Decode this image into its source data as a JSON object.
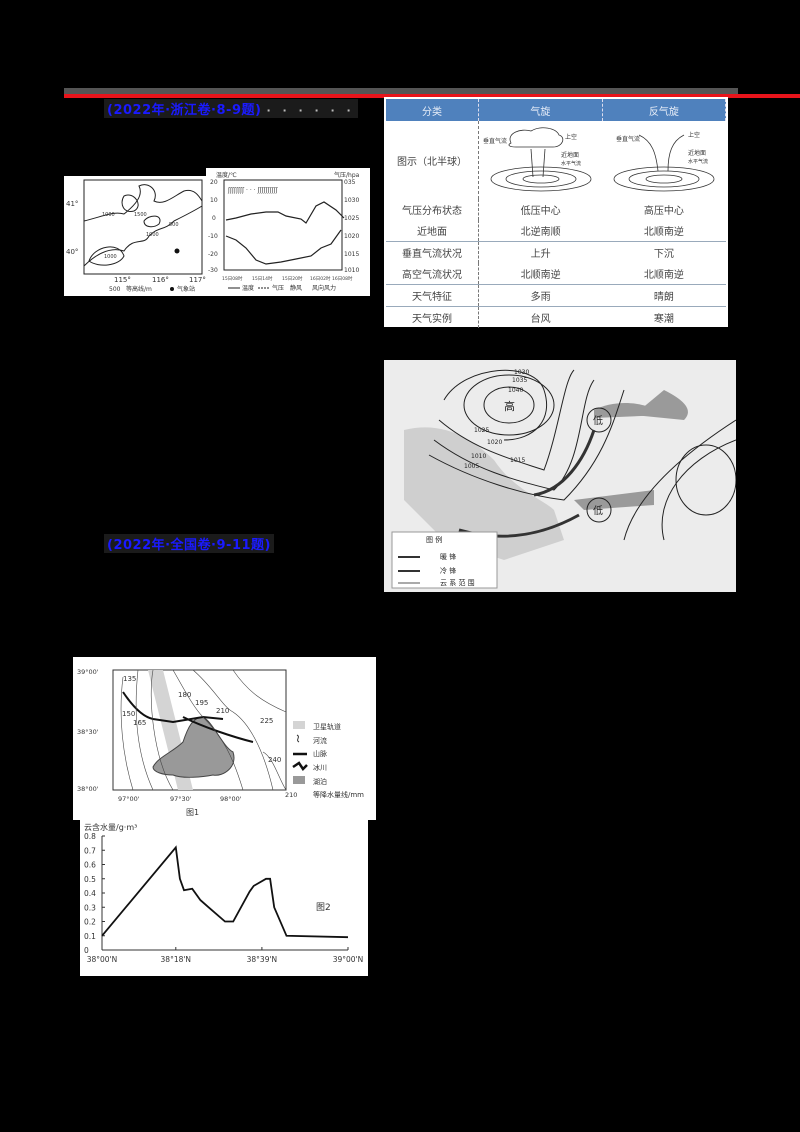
{
  "header": {
    "heading1": "(2022年·浙江卷·8-9题)",
    "heading1_tail": "· · · · · ·",
    "heading2": "(2022年·全国卷·9-11题)"
  },
  "fig_topo": {
    "lat_labels": [
      "41°",
      "40°"
    ],
    "lon_labels": [
      "115°",
      "116°",
      "117°"
    ],
    "contour_labels": [
      "1000",
      "1500",
      "500",
      "1000",
      "1000"
    ],
    "legend_contour": "等高线/m",
    "legend_contour_value": "500",
    "legend_station": "气象站"
  },
  "fig_weather": {
    "left_axis_title": "温度/℃",
    "right_axis_title": "气压/hpa",
    "left_ticks": [
      "20",
      "10",
      "0",
      "-10",
      "-20",
      "-30"
    ],
    "right_ticks": [
      "035",
      "1030",
      "1025",
      "1020",
      "1015",
      "1010"
    ],
    "x_ticks": [
      "15日08时",
      "15日14时",
      "15日20时",
      "16日02时",
      "16日08时"
    ],
    "legend": [
      "温度",
      "气压",
      "静风",
      "风向风力"
    ]
  },
  "table": {
    "headers": [
      "分类",
      "气旋",
      "反气旋"
    ],
    "diagram_row_label": "图示（北半球）",
    "cyclone_labels": {
      "vertical": "垂直气流",
      "upper": "上空",
      "surface": "近地面",
      "horizontal": "水平气流"
    },
    "anticyclone_labels": {
      "vertical": "垂直气流",
      "upper": "上空",
      "surface": "近地面",
      "horizontal": "水平气流"
    },
    "rows": [
      [
        "气压分布状态",
        "低压中心",
        "高压中心"
      ],
      [
        "近地面",
        "北逆南顺",
        "北顺南逆"
      ],
      [
        "垂直气流状况",
        "上升",
        "下沉"
      ],
      [
        "高空气流状况",
        "北顺南逆",
        "北顺南逆"
      ],
      [
        "天气特征",
        "多雨",
        "晴朗"
      ],
      [
        "天气实例",
        "台风",
        "寒潮"
      ]
    ]
  },
  "weather_map": {
    "isobar_labels": [
      "1030",
      "1035",
      "1040",
      "1025",
      "1020",
      "1015",
      "1010",
      "1005"
    ],
    "high_label": "高",
    "low_labels": [
      "低",
      "低"
    ],
    "legend_title": "图  例",
    "legend_items": [
      "暖  锋",
      "冷  锋",
      "云  系  范  围"
    ]
  },
  "fig1": {
    "title": "图1",
    "lat_labels": [
      "39°00'",
      "38°30'",
      "38°00'"
    ],
    "lon_labels": [
      "97°00'",
      "97°30'",
      "98°00'"
    ],
    "isohyet_labels": [
      "135",
      "150",
      "165",
      "180",
      "195",
      "210",
      "225",
      "240"
    ],
    "legend": [
      "卫星轨道",
      "河流",
      "山脉",
      "冰川",
      "湖泊",
      "等降水量线/mm"
    ],
    "legend_isohyet_value": "210"
  },
  "chart_data": {
    "type": "line",
    "title": "图2",
    "xlabel": "",
    "ylabel": "云含水量/g·m³",
    "x_ticks": [
      "38°00'N",
      "38°18'N",
      "38°39'N",
      "39°00'N"
    ],
    "y_ticks": [
      "0",
      "0.1",
      "0.2",
      "0.3",
      "0.4",
      "0.5",
      "0.6",
      "0.7",
      "0.8"
    ],
    "ylim": [
      0,
      0.8
    ],
    "xlim_minutes": [
      0,
      60
    ],
    "x_minutes": [
      0,
      18,
      19,
      20,
      22,
      24,
      26,
      30,
      32,
      36,
      37,
      40,
      41,
      42,
      45,
      60
    ],
    "values": [
      0.1,
      0.72,
      0.5,
      0.42,
      0.43,
      0.35,
      0.3,
      0.2,
      0.2,
      0.41,
      0.45,
      0.5,
      0.5,
      0.3,
      0.1,
      0.09
    ],
    "grid": false,
    "legend": "none"
  }
}
